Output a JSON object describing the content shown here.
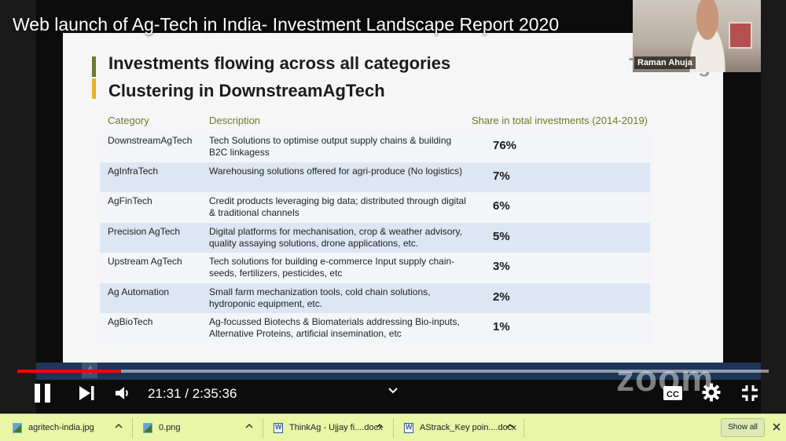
{
  "video": {
    "title": "Web launch of Ag-Tech in India- Investment Landscape Report 2020",
    "speaker_name": "Raman Ahuja",
    "slide_logo_text": "ThinkAg",
    "slide_page": "4",
    "zoom_watermark": "zoom"
  },
  "slide": {
    "heading_line1": "Investments flowing across all categories",
    "heading_line2": "Clustering in DownstreamAgTech",
    "columns": {
      "category": "Category",
      "description": "Description",
      "share": "Share in total investments (2014-2019)"
    },
    "rows": [
      {
        "category": "DownstreamAgTech",
        "description": "Tech Solutions to optimise output supply chains & building B2C linkagess",
        "share": "76%"
      },
      {
        "category": "AgInfraTech",
        "description": "Warehousing solutions offered for agri-produce (No logistics)",
        "share": "7%"
      },
      {
        "category": "AgFinTech",
        "description": "Credit products leveraging big data; distributed through digital & traditional channels",
        "share": "6%"
      },
      {
        "category": "Precision AgTech",
        "description": "Digital platforms for mechanisation, crop & weather advisory, quality assaying solutions, drone applications, etc.",
        "share": "5%"
      },
      {
        "category": "Upstream AgTech",
        "description": "Tech solutions for building e-commerce Input supply chain- seeds, fertilizers, pesticides, etc",
        "share": "3%"
      },
      {
        "category": "Ag Automation",
        "description": "Small farm mechanization tools, cold chain solutions, hydroponic equipment, etc.",
        "share": "2%"
      },
      {
        "category": "AgBioTech",
        "description": "Ag-focussed Biotechs & Biomaterials addressing Bio-inputs, Alternative Proteins, artificial insemination, etc",
        "share": "1%"
      }
    ]
  },
  "player": {
    "current_time": "21:31",
    "duration": "2:35:36",
    "time_display": "21:31 / 2:35:36",
    "progress_fraction": 0.138,
    "accent_color": "#ff0000"
  },
  "downloads": {
    "items": [
      {
        "name": "agritech-india.jpg",
        "icon": "image-file-icon"
      },
      {
        "name": "0.png",
        "icon": "image-file-icon"
      },
      {
        "name": "ThinkAg - Ujjay fi....docx",
        "icon": "word-doc-icon"
      },
      {
        "name": "AStrack_Key poin....docx",
        "icon": "word-doc-icon"
      }
    ],
    "show_all_label": "Show all"
  }
}
